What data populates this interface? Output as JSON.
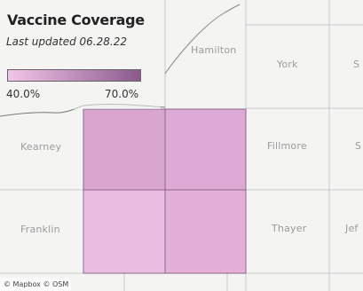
{
  "title": "Vaccine Coverage",
  "subtitle": "Last updated 06.28.22",
  "legend": {
    "min_label": "40.0%",
    "max_label": "70.0%",
    "color_low": "#f1c6e8",
    "color_high": "#8b5a8e"
  },
  "county_labels": {
    "hamilton": "Hamilton",
    "york": "York",
    "york_cut": "S",
    "kearney": "Kearney",
    "fillmore": "Fillmore",
    "fillmore_cut": "S",
    "franklin": "Franklin",
    "thayer": "Thayer",
    "thayer_cut": "Jef"
  },
  "attribution": "© Mapbox © OSM",
  "colors": {
    "base_map": "#f4f4f3",
    "county_border": "#c8c8c8",
    "state_border": "#777777",
    "shade_nw": "#d9a6d0",
    "shade_ne": "#dcaad5",
    "shade_sw": "#ecbde3",
    "shade_se": "#e2b0d8"
  }
}
